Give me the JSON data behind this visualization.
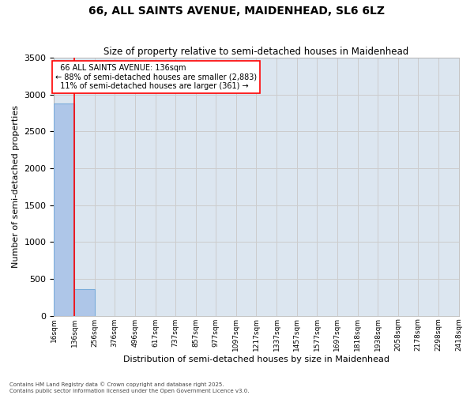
{
  "title": "66, ALL SAINTS AVENUE, MAIDENHEAD, SL6 6LZ",
  "subtitle": "Size of property relative to semi-detached houses in Maidenhead",
  "xlabel": "Distribution of semi-detached houses by size in Maidenhead",
  "ylabel": "Number of semi-detached properties",
  "property_size": 136,
  "annotation_text1": "  66 ALL SAINTS AVENUE: 136sqm  ",
  "annotation_text2": "← 88% of semi-detached houses are smaller (2,883)",
  "annotation_text3": "  11% of semi-detached houses are larger (361) →",
  "bin_edges": [
    16,
    136,
    256,
    376,
    496,
    617,
    737,
    857,
    977,
    1097,
    1217,
    1337,
    1457,
    1577,
    1697,
    1818,
    1938,
    2058,
    2178,
    2298,
    2418
  ],
  "bin_labels": [
    "16sqm",
    "136sqm",
    "256sqm",
    "376sqm",
    "496sqm",
    "617sqm",
    "737sqm",
    "857sqm",
    "977sqm",
    "1097sqm",
    "1217sqm",
    "1337sqm",
    "1457sqm",
    "1577sqm",
    "1697sqm",
    "1818sqm",
    "1938sqm",
    "2058sqm",
    "2178sqm",
    "2298sqm",
    "2418sqm"
  ],
  "bar_heights": [
    2883,
    361,
    0,
    0,
    0,
    0,
    0,
    0,
    0,
    0,
    0,
    0,
    0,
    0,
    0,
    0,
    0,
    0,
    0,
    0
  ],
  "bar_color": "#aec6e8",
  "bar_edge_color": "#7aacda",
  "grid_color": "#cccccc",
  "background_color": "#dce6f0",
  "vline_color": "red",
  "ylim": [
    0,
    3500
  ],
  "yticks": [
    0,
    500,
    1000,
    1500,
    2000,
    2500,
    3000,
    3500
  ],
  "footer_line1": "Contains HM Land Registry data © Crown copyright and database right 2025.",
  "footer_line2": "Contains public sector information licensed under the Open Government Licence v3.0."
}
